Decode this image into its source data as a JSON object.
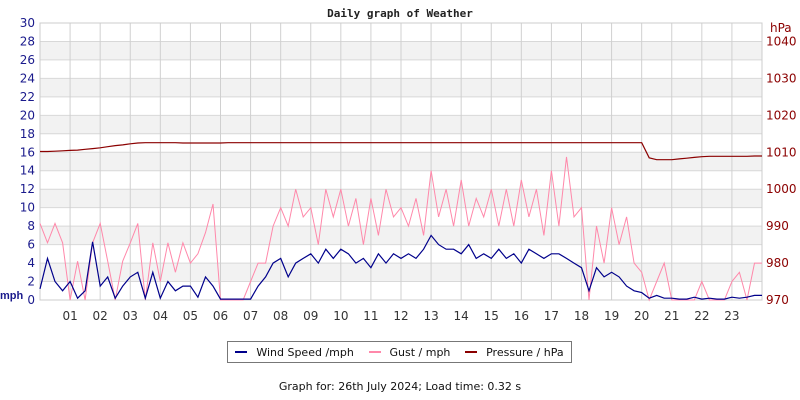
{
  "chart_data": {
    "type": "line",
    "title": "Daily graph of Weather",
    "x_tick_labels": [
      "01",
      "02",
      "03",
      "04",
      "05",
      "06",
      "07",
      "08",
      "09",
      "10",
      "11",
      "12",
      "13",
      "14",
      "15",
      "16",
      "17",
      "18",
      "19",
      "20",
      "21",
      "22",
      "23"
    ],
    "xlim": [
      0,
      24
    ],
    "left_axis": {
      "label": "mph",
      "ylim": [
        0,
        30
      ],
      "ticks": [
        0,
        2,
        4,
        6,
        8,
        10,
        12,
        14,
        16,
        18,
        20,
        22,
        24,
        26,
        28,
        30
      ]
    },
    "right_axis": {
      "label": "hPa",
      "ylim": [
        970,
        1045
      ],
      "ticks": [
        970,
        980,
        990,
        1000,
        1010,
        1020,
        1030,
        1040
      ]
    },
    "grid": true,
    "legend_position": "bottom",
    "x_hours_step": 0.25,
    "series": [
      {
        "name": "Wind Speed /mph",
        "color": "#00008b",
        "axis": "left",
        "values": [
          1.2,
          4.5,
          2,
          1,
          2,
          0.2,
          1,
          6.3,
          1.5,
          2.5,
          0.2,
          1.5,
          2.5,
          3,
          0.2,
          3,
          0.2,
          2,
          1,
          1.5,
          1.5,
          0.3,
          2.5,
          1.5,
          0.1,
          0.1,
          0.1,
          0.1,
          0.1,
          1.5,
          2.5,
          4,
          4.5,
          2.5,
          4,
          4.5,
          5,
          4,
          5.5,
          4.5,
          5.5,
          5,
          4,
          4.5,
          3.5,
          5,
          4,
          5,
          4.5,
          5,
          4.5,
          5.5,
          7,
          6,
          5.5,
          5.5,
          5,
          6,
          4.5,
          5,
          4.5,
          5.5,
          4.5,
          5,
          4,
          5.5,
          5,
          4.5,
          5,
          5,
          4.5,
          4,
          3.5,
          1,
          3.5,
          2.5,
          3,
          2.5,
          1.5,
          1,
          0.8,
          0.2,
          0.5,
          0.2,
          0.2,
          0.1,
          0.1,
          0.3,
          0.1,
          0.2,
          0.1,
          0.1,
          0.3,
          0.2,
          0.3,
          0.5
        ]
      },
      {
        "name": "Gust / mph",
        "color": "#ff88aa",
        "axis": "left",
        "values": [
          8.3,
          6.2,
          8.3,
          6.2,
          0,
          4.2,
          0,
          6.2,
          8.3,
          4.2,
          0,
          4.2,
          6.2,
          8.3,
          0,
          6.2,
          2,
          6.2,
          3,
          6.2,
          4,
          5,
          7.3,
          10.4,
          0,
          0,
          0,
          0,
          2,
          4,
          4,
          8,
          10,
          8,
          12,
          9,
          10,
          6,
          12,
          9,
          12,
          8,
          11,
          6,
          11,
          7,
          12,
          9,
          10,
          8,
          11,
          7,
          14,
          9,
          12,
          8,
          13,
          8,
          11,
          9,
          12,
          8,
          12,
          8,
          13,
          9,
          12,
          7,
          14,
          8,
          15.5,
          9,
          10,
          0,
          8,
          4,
          10,
          6,
          9,
          4,
          3,
          0,
          2,
          4,
          0,
          0,
          0,
          0,
          2,
          0,
          0,
          0,
          2,
          3,
          0,
          4
        ]
      },
      {
        "name": "Pressure / hPa",
        "color": "#8b0000",
        "axis": "right",
        "values": [
          1010.2,
          1010.2,
          1010.3,
          1010.4,
          1010.5,
          1010.6,
          1010.8,
          1011.0,
          1011.2,
          1011.5,
          1011.8,
          1012.0,
          1012.3,
          1012.5,
          1012.6,
          1012.6,
          1012.6,
          1012.6,
          1012.6,
          1012.5,
          1012.5,
          1012.5,
          1012.5,
          1012.5,
          1012.5,
          1012.6,
          1012.6,
          1012.6,
          1012.6,
          1012.6,
          1012.6,
          1012.6,
          1012.6,
          1012.6,
          1012.6,
          1012.6,
          1012.6,
          1012.6,
          1012.6,
          1012.6,
          1012.6,
          1012.6,
          1012.6,
          1012.6,
          1012.6,
          1012.6,
          1012.6,
          1012.6,
          1012.6,
          1012.6,
          1012.6,
          1012.6,
          1012.6,
          1012.6,
          1012.6,
          1012.6,
          1012.6,
          1012.6,
          1012.6,
          1012.6,
          1012.6,
          1012.6,
          1012.6,
          1012.6,
          1012.6,
          1012.6,
          1012.6,
          1012.6,
          1012.6,
          1012.6,
          1012.6,
          1012.6,
          1012.6,
          1012.6,
          1012.6,
          1012.6,
          1012.6,
          1012.6,
          1012.6,
          1012.6,
          1012.6,
          1008.5,
          1008.0,
          1008.0,
          1008.0,
          1008.2,
          1008.4,
          1008.6,
          1008.8,
          1008.9,
          1008.9,
          1008.9,
          1008.9,
          1008.9,
          1008.9,
          1009.0
        ]
      }
    ]
  },
  "footer": "Graph for: 26th July 2024; Load time: 0.32 s"
}
